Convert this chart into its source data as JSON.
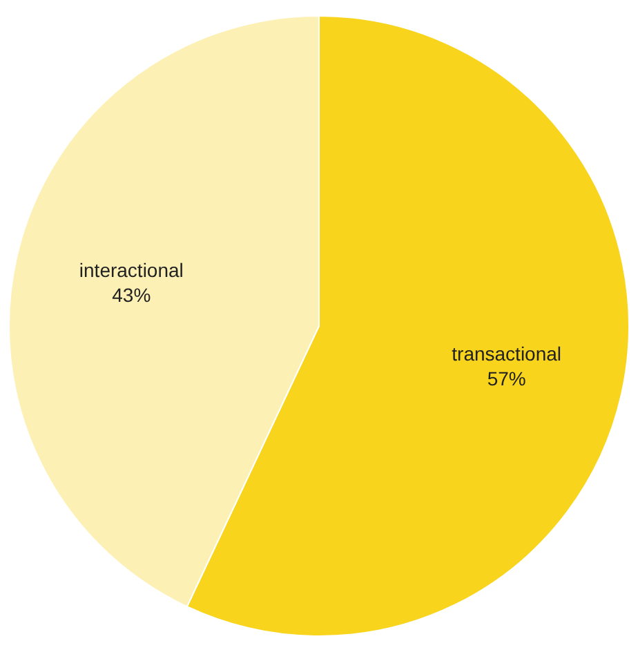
{
  "chart_data": {
    "type": "pie",
    "categories": [
      "transactional",
      "interactional"
    ],
    "values": [
      57,
      43
    ],
    "colors": [
      "#f8d41c",
      "#fdf0b4"
    ],
    "value_labels": [
      "57%",
      "43%"
    ],
    "legend": false
  }
}
